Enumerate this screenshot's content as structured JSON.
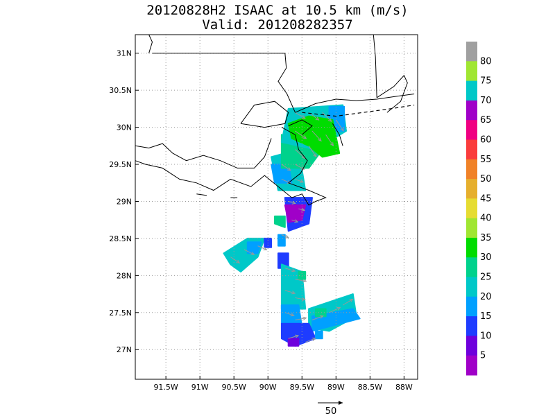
{
  "title_line1": "20120828H2 ISAAC at 10.5 km (m/s)",
  "title_line2": "Valid: 201208282357",
  "lat_labels": [
    "31N",
    "30.5N",
    "30N",
    "29.5N",
    "29N",
    "28.5N",
    "28N",
    "27.5N",
    "27N"
  ],
  "lat_values": [
    31,
    30.5,
    30,
    29.5,
    29,
    28.5,
    28,
    27.5,
    27
  ],
  "lon_labels": [
    "91.5W",
    "91W",
    "90.5W",
    "90W",
    "89.5W",
    "89W",
    "88.5W",
    "88W"
  ],
  "lon_values": [
    -91.5,
    -91,
    -90.5,
    -90,
    -89.5,
    -89,
    -88.5,
    -88
  ],
  "map_extent": {
    "lon_min": -91.95,
    "lon_max": -87.8,
    "lat_min": 26.6,
    "lat_max": 31.25
  },
  "grid": "dotted",
  "vector_reference": {
    "label": "50",
    "units": "m/s"
  },
  "colorbar": {
    "labels": [
      "80",
      "75",
      "70",
      "65",
      "60",
      "55",
      "50",
      "45",
      "40",
      "35",
      "30",
      "25",
      "20",
      "15",
      "10",
      "5"
    ],
    "bins_top_to_bottom": [
      {
        "color": "#a0a0a0"
      },
      {
        "color": "#a0e632"
      },
      {
        "color": "#00c8c8"
      },
      {
        "color": "#a000c8"
      },
      {
        "color": "#f00082"
      },
      {
        "color": "#fa3c3c"
      },
      {
        "color": "#f08228"
      },
      {
        "color": "#e6af2d"
      },
      {
        "color": "#e6dc32"
      },
      {
        "color": "#a0e632"
      },
      {
        "color": "#00dc00"
      },
      {
        "color": "#00d28c"
      },
      {
        "color": "#00c8c8"
      },
      {
        "color": "#00a0ff"
      },
      {
        "color": "#1e3cff"
      },
      {
        "color": "#6e00dc"
      },
      {
        "color": "#a000c8"
      }
    ]
  },
  "wind_regions": [
    {
      "color": "#1e3cff",
      "lonlat": [
        [
          -89.75,
          29.05
        ],
        [
          -89.35,
          29.05
        ],
        [
          -89.4,
          28.7
        ],
        [
          -89.7,
          28.6
        ]
      ]
    },
    {
      "color": "#a000c8",
      "lonlat": [
        [
          -89.75,
          28.95
        ],
        [
          -89.45,
          28.95
        ],
        [
          -89.5,
          28.75
        ],
        [
          -89.7,
          28.72
        ]
      ]
    },
    {
      "color": "#00c8c8",
      "lonlat": [
        [
          -89.95,
          29.6
        ],
        [
          -89.55,
          29.7
        ],
        [
          -89.45,
          29.15
        ],
        [
          -89.85,
          29.15
        ]
      ]
    },
    {
      "color": "#00a0ff",
      "lonlat": [
        [
          -89.95,
          29.5
        ],
        [
          -89.7,
          29.5
        ],
        [
          -89.65,
          29.25
        ],
        [
          -89.9,
          29.25
        ]
      ]
    },
    {
      "color": "#00d28c",
      "lonlat": [
        [
          -89.8,
          29.9
        ],
        [
          -89.2,
          29.7
        ],
        [
          -89.4,
          29.45
        ],
        [
          -89.8,
          29.45
        ]
      ]
    },
    {
      "color": "#00c8c8",
      "lonlat": [
        [
          -89.7,
          30.25
        ],
        [
          -88.9,
          30.3
        ],
        [
          -88.85,
          29.95
        ],
        [
          -89.3,
          29.7
        ],
        [
          -89.8,
          29.8
        ]
      ]
    },
    {
      "color": "#00a0ff",
      "lonlat": [
        [
          -89.1,
          30.28
        ],
        [
          -88.88,
          30.28
        ],
        [
          -88.88,
          29.95
        ],
        [
          -89.1,
          29.95
        ]
      ]
    },
    {
      "color": "#00dc00",
      "lonlat": [
        [
          -89.7,
          30.05
        ],
        [
          -89.4,
          30.15
        ],
        [
          -89.05,
          30.1
        ],
        [
          -88.95,
          29.65
        ],
        [
          -89.2,
          29.6
        ],
        [
          -89.4,
          29.75
        ],
        [
          -89.65,
          29.85
        ]
      ]
    },
    {
      "color": "#00d28c",
      "lonlat": [
        [
          -89.9,
          28.8
        ],
        [
          -89.75,
          28.8
        ],
        [
          -89.75,
          28.65
        ],
        [
          -89.9,
          28.7
        ]
      ]
    },
    {
      "color": "#00a0ff",
      "lonlat": [
        [
          -89.85,
          28.55
        ],
        [
          -89.75,
          28.55
        ],
        [
          -89.75,
          28.4
        ],
        [
          -89.85,
          28.4
        ]
      ]
    },
    {
      "color": "#00c8c8",
      "lonlat": [
        [
          -90.65,
          28.3
        ],
        [
          -90.3,
          28.5
        ],
        [
          -90.05,
          28.5
        ],
        [
          -90.15,
          28.25
        ],
        [
          -90.4,
          28.05
        ],
        [
          -90.55,
          28.15
        ]
      ]
    },
    {
      "color": "#1e3cff",
      "lonlat": [
        [
          -90.05,
          28.5
        ],
        [
          -89.95,
          28.5
        ],
        [
          -89.95,
          28.38
        ],
        [
          -90.05,
          28.38
        ]
      ]
    },
    {
      "color": "#00a0ff",
      "lonlat": [
        [
          -90.3,
          28.45
        ],
        [
          -90.1,
          28.45
        ],
        [
          -90.15,
          28.3
        ],
        [
          -90.3,
          28.3
        ]
      ]
    },
    {
      "color": "#1e3cff",
      "lonlat": [
        [
          -89.85,
          28.3
        ],
        [
          -89.7,
          28.3
        ],
        [
          -89.7,
          28.1
        ],
        [
          -89.85,
          28.1
        ]
      ]
    },
    {
      "color": "#00c8c8",
      "lonlat": [
        [
          -89.8,
          28.15
        ],
        [
          -89.5,
          28.05
        ],
        [
          -89.45,
          27.55
        ],
        [
          -89.8,
          27.55
        ]
      ]
    },
    {
      "color": "#00a0ff",
      "lonlat": [
        [
          -89.8,
          27.6
        ],
        [
          -89.55,
          27.6
        ],
        [
          -89.5,
          27.3
        ],
        [
          -89.8,
          27.35
        ]
      ]
    },
    {
      "color": "#00d28c",
      "lonlat": [
        [
          -89.55,
          28.05
        ],
        [
          -89.45,
          28.05
        ],
        [
          -89.45,
          27.95
        ],
        [
          -89.55,
          27.95
        ]
      ]
    },
    {
      "color": "#00c8c8",
      "lonlat": [
        [
          -89.4,
          27.55
        ],
        [
          -88.75,
          27.75
        ],
        [
          -88.7,
          27.45
        ],
        [
          -89.1,
          27.25
        ],
        [
          -89.4,
          27.3
        ]
      ]
    },
    {
      "color": "#00a0ff",
      "lonlat": [
        [
          -89.35,
          27.45
        ],
        [
          -88.75,
          27.55
        ],
        [
          -88.65,
          27.42
        ],
        [
          -89.35,
          27.25
        ]
      ]
    },
    {
      "color": "#00d28c",
      "lonlat": [
        [
          -89.3,
          27.55
        ],
        [
          -89.15,
          27.55
        ],
        [
          -89.15,
          27.45
        ],
        [
          -89.3,
          27.45
        ]
      ]
    },
    {
      "color": "#1e3cff",
      "lonlat": [
        [
          -89.8,
          27.35
        ],
        [
          -89.4,
          27.35
        ],
        [
          -89.3,
          27.15
        ],
        [
          -89.6,
          27.05
        ],
        [
          -89.8,
          27.15
        ]
      ]
    },
    {
      "color": "#6e00dc",
      "lonlat": [
        [
          -89.7,
          27.15
        ],
        [
          -89.55,
          27.15
        ],
        [
          -89.55,
          27.05
        ],
        [
          -89.7,
          27.05
        ]
      ]
    },
    {
      "color": "#00a0ff",
      "lonlat": [
        [
          -89.3,
          27.25
        ],
        [
          -89.2,
          27.25
        ],
        [
          -89.2,
          27.15
        ],
        [
          -89.3,
          27.15
        ]
      ]
    }
  ],
  "vectors": [
    {
      "lon": -89.6,
      "lat": 30.2,
      "u": 20,
      "v": -12
    },
    {
      "lon": -89.4,
      "lat": 30.2,
      "u": 20,
      "v": -15
    },
    {
      "lon": -89.2,
      "lat": 30.2,
      "u": 18,
      "v": -18
    },
    {
      "lon": -89.0,
      "lat": 30.1,
      "u": 15,
      "v": -22
    },
    {
      "lon": -89.6,
      "lat": 29.95,
      "u": 22,
      "v": -15
    },
    {
      "lon": -89.35,
      "lat": 29.95,
      "u": 18,
      "v": -20
    },
    {
      "lon": -89.15,
      "lat": 29.9,
      "u": 15,
      "v": -22
    },
    {
      "lon": -89.6,
      "lat": 29.7,
      "u": 20,
      "v": -18
    },
    {
      "lon": -89.4,
      "lat": 29.75,
      "u": 15,
      "v": -22
    },
    {
      "lon": -89.8,
      "lat": 29.5,
      "u": 18,
      "v": -12
    },
    {
      "lon": -89.6,
      "lat": 29.5,
      "u": 18,
      "v": -10
    },
    {
      "lon": -89.8,
      "lat": 29.3,
      "u": 18,
      "v": -8
    },
    {
      "lon": -89.6,
      "lat": 29.3,
      "u": 16,
      "v": -6
    },
    {
      "lon": -89.7,
      "lat": 29.0,
      "u": 14,
      "v": -4
    },
    {
      "lon": -89.55,
      "lat": 28.9,
      "u": 12,
      "v": -3
    },
    {
      "lon": -89.65,
      "lat": 28.75,
      "u": 12,
      "v": -4
    },
    {
      "lon": -89.8,
      "lat": 28.55,
      "u": 14,
      "v": -6
    },
    {
      "lon": -90.55,
      "lat": 28.25,
      "u": 18,
      "v": -12
    },
    {
      "lon": -90.35,
      "lat": 28.35,
      "u": 20,
      "v": -10
    },
    {
      "lon": -90.15,
      "lat": 28.4,
      "u": 18,
      "v": -8
    },
    {
      "lon": -89.75,
      "lat": 28.1,
      "u": 20,
      "v": -6
    },
    {
      "lon": -89.6,
      "lat": 27.95,
      "u": 22,
      "v": -4
    },
    {
      "lon": -89.75,
      "lat": 27.8,
      "u": 20,
      "v": -6
    },
    {
      "lon": -89.6,
      "lat": 27.7,
      "u": 20,
      "v": -4
    },
    {
      "lon": -89.75,
      "lat": 27.5,
      "u": 18,
      "v": -6
    },
    {
      "lon": -89.6,
      "lat": 27.4,
      "u": 22,
      "v": 4
    },
    {
      "lon": -89.35,
      "lat": 27.4,
      "u": 22,
      "v": 8
    },
    {
      "lon": -89.1,
      "lat": 27.5,
      "u": 22,
      "v": 10
    },
    {
      "lon": -88.9,
      "lat": 27.6,
      "u": 20,
      "v": 12
    },
    {
      "lon": -89.7,
      "lat": 27.15,
      "u": 20,
      "v": 6
    },
    {
      "lon": -89.45,
      "lat": 27.1,
      "u": 20,
      "v": 8
    }
  ]
}
